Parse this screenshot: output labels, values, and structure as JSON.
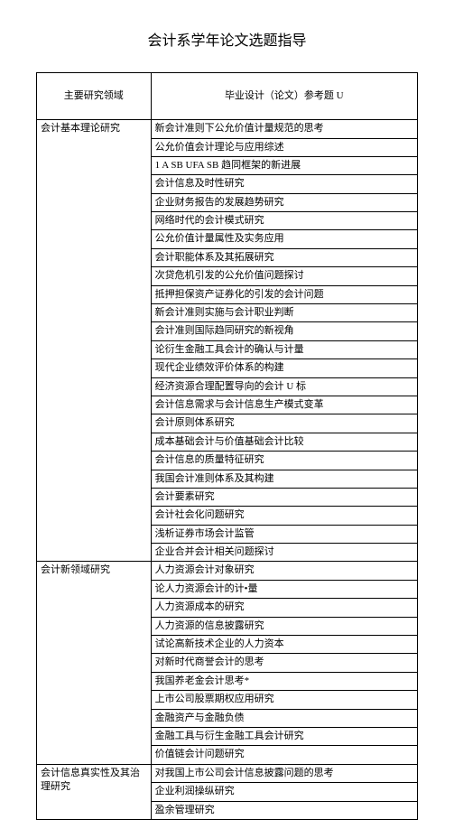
{
  "title": "会计系学年论文选题指导",
  "header": {
    "col1": "主要研究领域",
    "col2": "毕业设计（论文）参考题 U"
  },
  "sections": [
    {
      "category": "会计基本理论研究",
      "items": [
        "新会计准则下公允价值计量规范的思考",
        "公允价值会计理论与应用综述",
        "1 A SB UFA SB 趋同框架的新进展",
        "会计信息及时性研究",
        "企业财务报告的发展趋势研究",
        "网络时代的会计模式研究",
        "公允价值计量属性及实务应用",
        "会计职能体系及其拓展研究",
        "次贷危机引发的公允价值问题探讨",
        "抵押担保资产证券化的引发的会计问题",
        "新会计准则实施与会计职业判断",
        "会计准则国际趋同研究的新视角",
        "论衍生金融工具会计的确认与计量",
        "现代企业绩效评价体系的构建",
        "经济资源合理配置导向的会计 U 标",
        "会计信息需求与会计信息生产模式变革",
        "会计原则体系研究",
        "成本基础会计与价值基础会计比较",
        "会计信息的质量特征研究",
        "我国会计准则体系及其构建",
        "会计要素研究",
        "会计社会化问题研究",
        "浅析证券市场会计监管",
        "企业合并会计相关问题探讨"
      ]
    },
    {
      "category": "会计新领域研究",
      "items": [
        "人力资源会计对象研究",
        "论人力资源会计的计•量",
        "人力资源成本的研究",
        "人力资源的信息披露研究",
        "试论高新技术企业的人力资本",
        "对新时代商誉会计的思考",
        "我国养老金会计思考*",
        "上市公司股票期权应用研究",
        "金融资产与金融负债",
        "金融工具与衍生金融工具会计研究",
        "价值链会计问题研究"
      ]
    },
    {
      "category": "会计信息真实性及其治理研究",
      "items": [
        "对我国上市公司会计信息披露问题的思考",
        "企业利润操纵研究",
        "盈余管理研究"
      ]
    }
  ]
}
